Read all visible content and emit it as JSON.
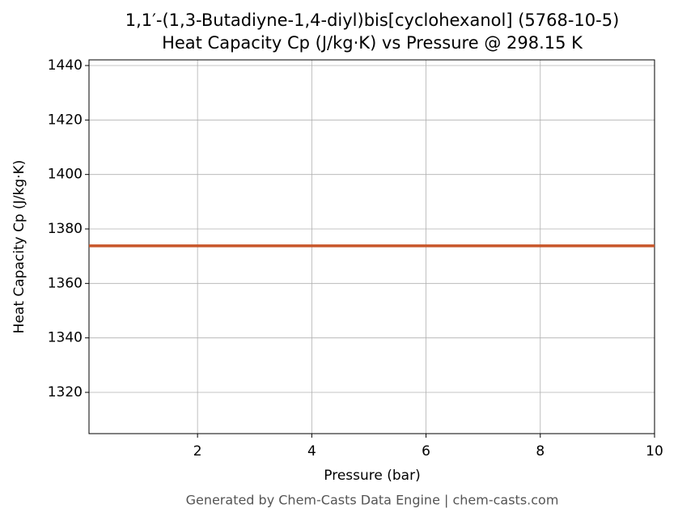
{
  "chart_data": {
    "type": "line",
    "title": "1,1′-(1,3-Butadiyne-1,4-diyl)bis[cyclohexanol] (5768-10-5)",
    "subtitle": "Heat Capacity Cp (J/kg·K) vs Pressure @ 298.15 K",
    "x_label": "Pressure (bar)",
    "y_label": "Heat Capacity Cp (J/kg·K)",
    "footer": "Generated by Chem-Casts Data Engine | chem-casts.com",
    "x": [
      0.1,
      10
    ],
    "series": [
      {
        "name": "Cp",
        "color": "#c8562a",
        "values": [
          1373.8,
          1373.8
        ]
      }
    ],
    "xlim": [
      0.1,
      10
    ],
    "xticks": [
      2,
      4,
      6,
      8,
      10
    ],
    "ylim": [
      1304.85,
      1442.08
    ],
    "yticks": [
      1320,
      1340,
      1360,
      1380,
      1400,
      1420,
      1440
    ],
    "grid": true
  }
}
